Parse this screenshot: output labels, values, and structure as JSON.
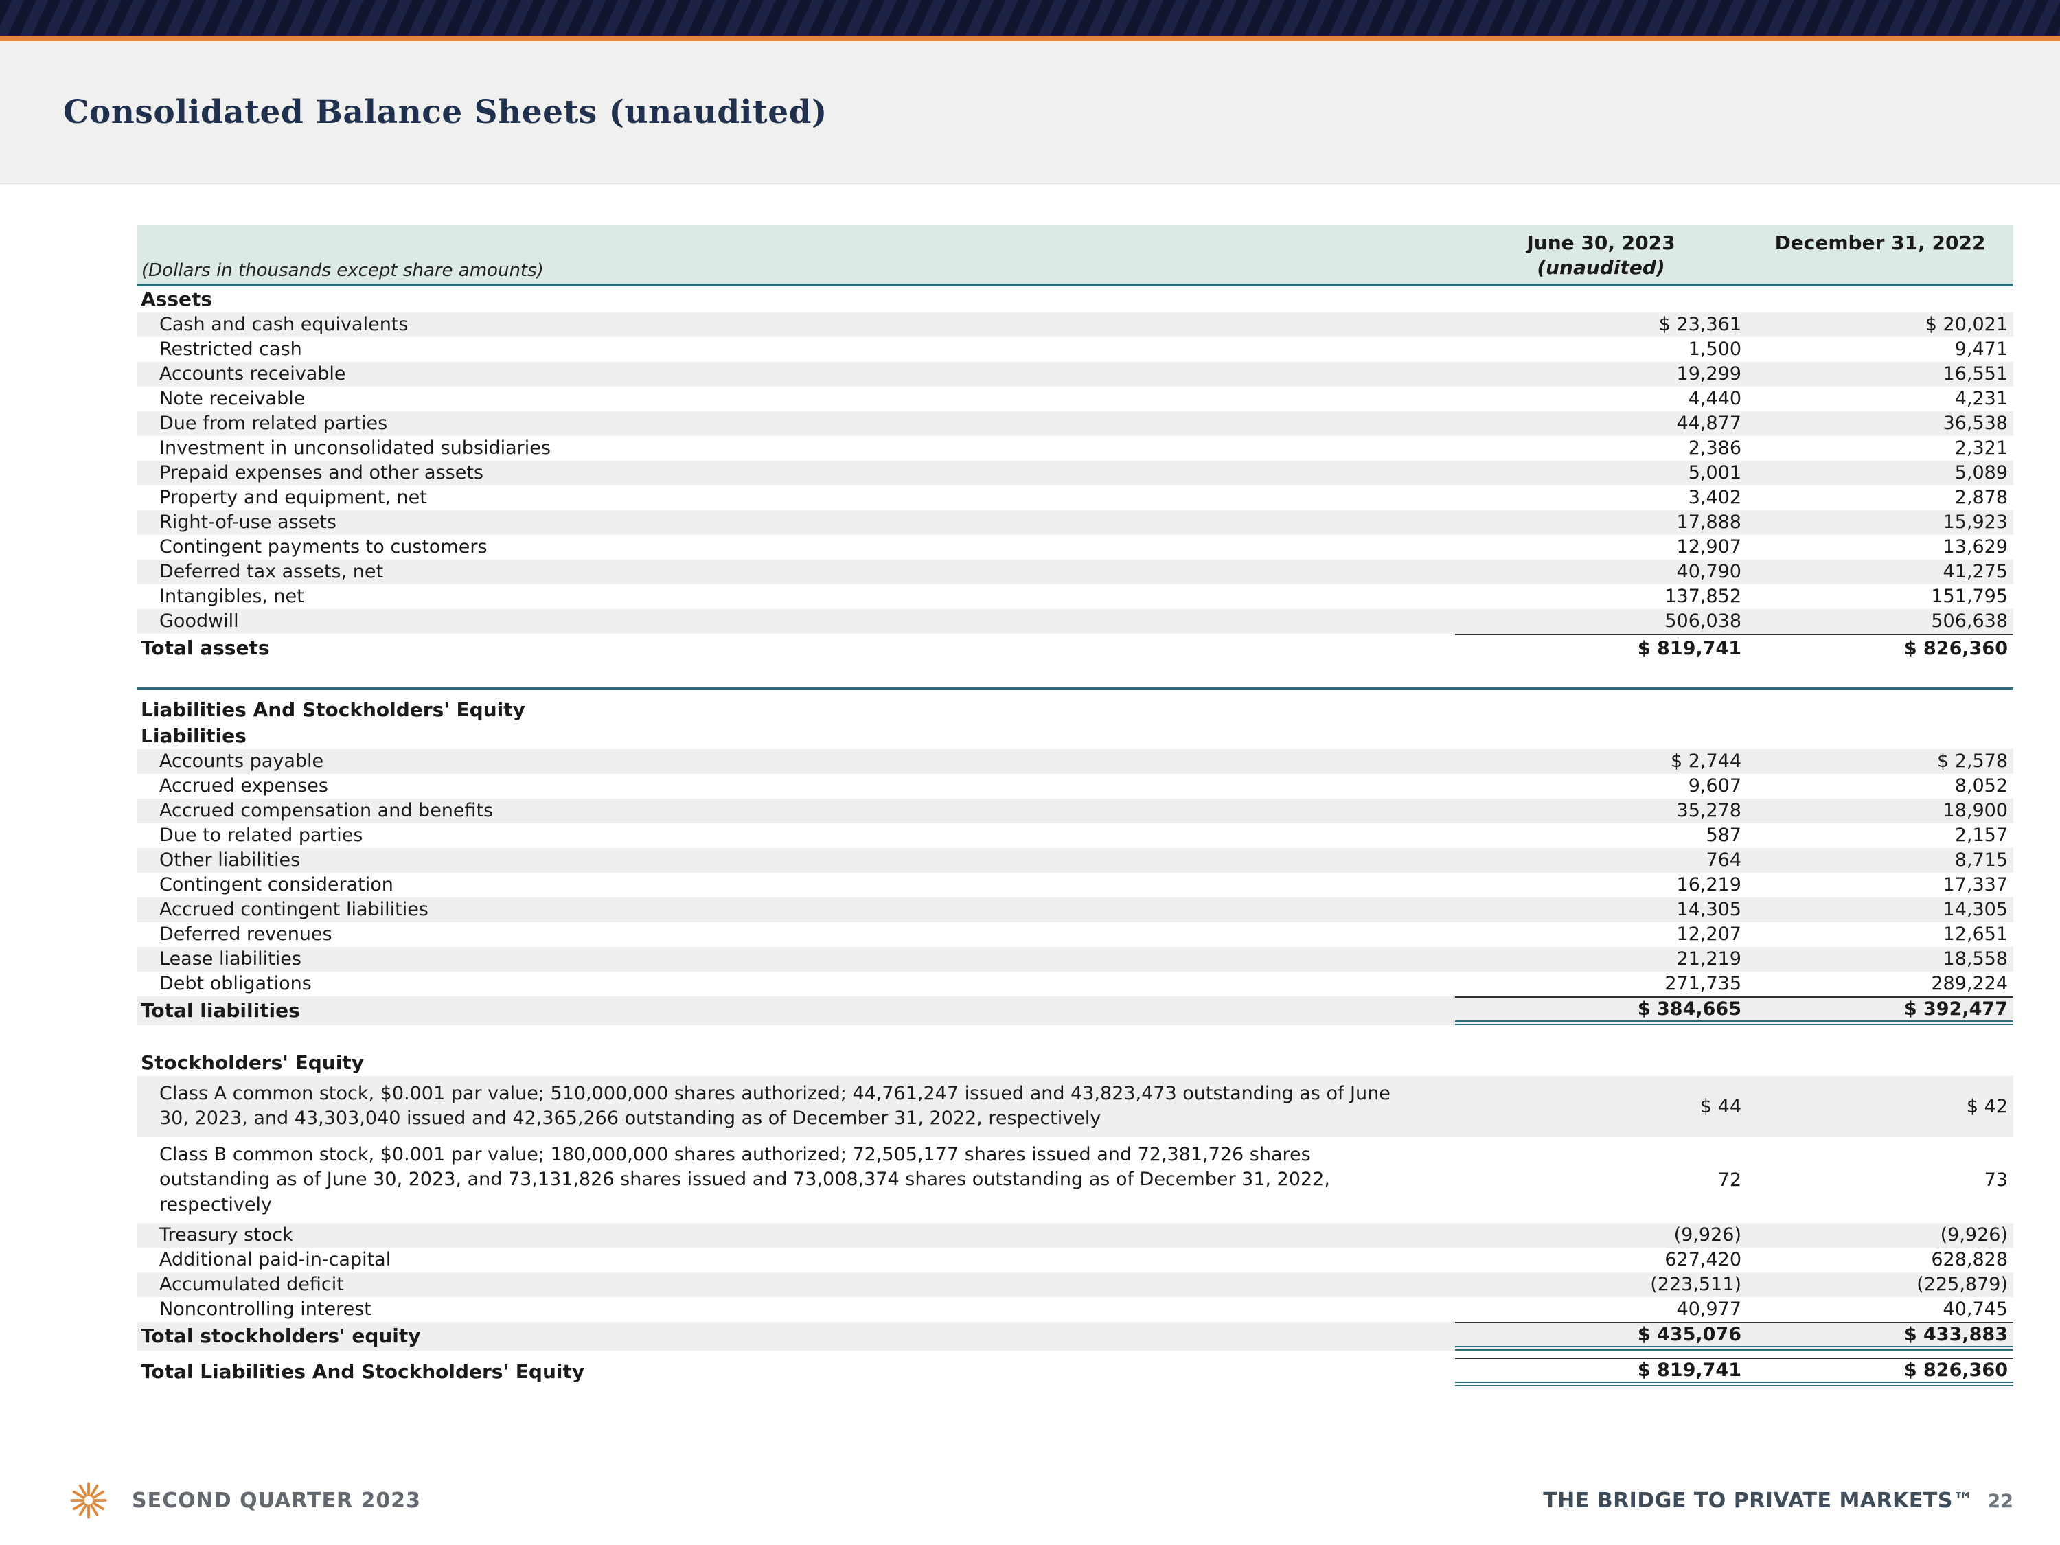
{
  "colors": {
    "orange": "#e0873c",
    "teal": "#2a6f7a",
    "navy": "#10162e",
    "navy2": "#1c2344",
    "title-text": "#20304f",
    "shade": "#efeff0",
    "header-fill": "#dbe9e7",
    "band": "#f0f0ee"
  },
  "header": {
    "title": "Consolidated Balance Sheets (unaudited)"
  },
  "table": {
    "note": "(Dollars in thousands except share amounts)",
    "columns": [
      {
        "line1": "June 30, 2023",
        "line2": "(unaudited)"
      },
      {
        "line1": "December 31, 2022",
        "line2": ""
      }
    ],
    "rows": [
      {
        "kind": "section",
        "label": "Assets"
      },
      {
        "kind": "item",
        "label": "Cash and cash equivalents",
        "v1": "$ 23,361",
        "v2": "$ 20,021",
        "shade": true
      },
      {
        "kind": "item",
        "label": "Restricted cash",
        "v1": "1,500",
        "v2": "9,471"
      },
      {
        "kind": "item",
        "label": "Accounts receivable",
        "v1": "19,299",
        "v2": "16,551",
        "shade": true
      },
      {
        "kind": "item",
        "label": "Note receivable",
        "v1": "4,440",
        "v2": "4,231"
      },
      {
        "kind": "item",
        "label": "Due from related parties",
        "v1": "44,877",
        "v2": "36,538",
        "shade": true
      },
      {
        "kind": "item",
        "label": "Investment in unconsolidated subsidiaries",
        "v1": "2,386",
        "v2": "2,321"
      },
      {
        "kind": "item",
        "label": "Prepaid expenses and other assets",
        "v1": "5,001",
        "v2": "5,089",
        "shade": true
      },
      {
        "kind": "item",
        "label": "Property and equipment, net",
        "v1": "3,402",
        "v2": "2,878"
      },
      {
        "kind": "item",
        "label": "Right-of-use assets",
        "v1": "17,888",
        "v2": "15,923",
        "shade": true
      },
      {
        "kind": "item",
        "label": "Contingent payments to customers",
        "v1": "12,907",
        "v2": "13,629"
      },
      {
        "kind": "item",
        "label": "Deferred tax assets, net",
        "v1": "40,790",
        "v2": "41,275",
        "shade": true
      },
      {
        "kind": "item",
        "label": "Intangibles, net",
        "v1": "137,852",
        "v2": "151,795"
      },
      {
        "kind": "item",
        "label": "Goodwill",
        "v1": "506,038",
        "v2": "506,638",
        "shade": true
      },
      {
        "kind": "total",
        "label": "Total assets",
        "v1": "$ 819,741",
        "v2": "$ 826,360",
        "ruleTop": true
      },
      {
        "kind": "divider"
      },
      {
        "kind": "section",
        "label": "Liabilities And Stockholders' Equity"
      },
      {
        "kind": "section",
        "label": "Liabilities"
      },
      {
        "kind": "item",
        "label": "Accounts payable",
        "v1": "$ 2,744",
        "v2": "$ 2,578",
        "shade": true
      },
      {
        "kind": "item",
        "label": "Accrued expenses",
        "v1": "9,607",
        "v2": "8,052"
      },
      {
        "kind": "item",
        "label": "Accrued compensation and benefits",
        "v1": "35,278",
        "v2": "18,900",
        "shade": true
      },
      {
        "kind": "item",
        "label": "Due to related parties",
        "v1": "587",
        "v2": "2,157"
      },
      {
        "kind": "item",
        "label": "Other liabilities",
        "v1": "764",
        "v2": "8,715",
        "shade": true
      },
      {
        "kind": "item",
        "label": "Contingent consideration",
        "v1": "16,219",
        "v2": "17,337"
      },
      {
        "kind": "item",
        "label": "Accrued contingent liabilities",
        "v1": "14,305",
        "v2": "14,305",
        "shade": true
      },
      {
        "kind": "item",
        "label": "Deferred revenues",
        "v1": "12,207",
        "v2": "12,651"
      },
      {
        "kind": "item",
        "label": "Lease liabilities",
        "v1": "21,219",
        "v2": "18,558",
        "shade": true
      },
      {
        "kind": "item",
        "label": "Debt obligations",
        "v1": "271,735",
        "v2": "289,224"
      },
      {
        "kind": "total",
        "label": "Total liabilities",
        "v1": "$ 384,665",
        "v2": "$ 392,477",
        "shade": true,
        "ruleTop": true,
        "doubleBottom": true
      },
      {
        "kind": "spacer"
      },
      {
        "kind": "section",
        "label": "Stockholders' Equity"
      },
      {
        "kind": "item",
        "multiline": true,
        "label": "Class A common stock, $0.001 par value; 510,000,000 shares authorized;  44,761,247  issued and 43,823,473 outstanding as of June 30, 2023, and 43,303,040  issued and 42,365,266 outstanding as of December 31, 2022, respectively",
        "v1": "$ 44",
        "v2": "$ 42",
        "shade": true
      },
      {
        "kind": "item",
        "multiline": true,
        "label": "Class B common stock, $0.001 par value;  180,000,000 shares authorized; 72,505,177 shares issued and 72,381,726 shares outstanding as of June 30, 2023, and 73,131,826 shares issued and 73,008,374 shares outstanding as of December 31, 2022, respectively",
        "v1": "72",
        "v2": "73"
      },
      {
        "kind": "item",
        "label": "Treasury stock",
        "v1": "(9,926)",
        "v2": "(9,926)",
        "shade": true
      },
      {
        "kind": "item",
        "label": "Additional paid-in-capital",
        "v1": "627,420",
        "v2": "628,828"
      },
      {
        "kind": "item",
        "label": "Accumulated deficit",
        "v1": "(223,511)",
        "v2": "(225,879)",
        "shade": true
      },
      {
        "kind": "item",
        "label": "Noncontrolling interest",
        "v1": "40,977",
        "v2": "40,745"
      },
      {
        "kind": "total",
        "label": "Total stockholders' equity",
        "v1": "$ 435,076",
        "v2": "$ 433,883",
        "shade": true,
        "ruleTop": true,
        "doubleBottom": true
      },
      {
        "kind": "spacer",
        "size": "small"
      },
      {
        "kind": "total",
        "label": "Total Liabilities And Stockholders' Equity",
        "v1": "$ 819,741",
        "v2": "$ 826,360",
        "ruleTop": true,
        "doubleBottom": true
      }
    ]
  },
  "footer": {
    "left": "SECOND QUARTER 2023",
    "right": "THE BRIDGE TO PRIVATE MARKETS™",
    "page": "22",
    "logo": "starburst-logo"
  }
}
